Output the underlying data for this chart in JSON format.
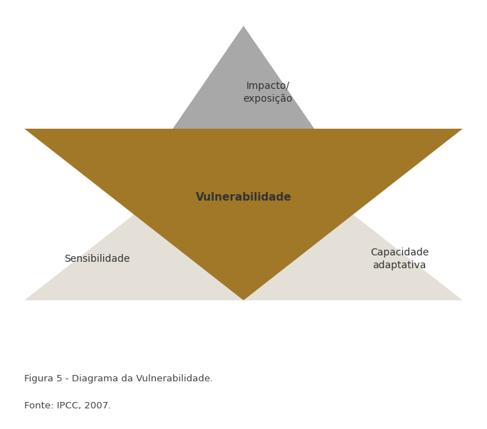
{
  "background_color": "#ffffff",
  "caption_line1": "Figura 5 - Diagrama da Vulnerabilidade.",
  "caption_line2": "Fonte: IPCC, 2007.",
  "caption_fontsize": 9.5,
  "caption_color": "#444444",
  "triangle_up_color": "#a8a8a8",
  "triangle_down_color": "#a07828",
  "triangle_base_color": "#e4e0d8",
  "label_impacto": "Impacto/\nexposição",
  "label_sensibilidade": "Sensibilidade",
  "label_capacidade": "Capacidade\nadaptativa",
  "label_vulnerabilidade": "Vulnerabilidade",
  "label_fontsize": 10,
  "vuln_fontsize": 11,
  "text_color": "#333333"
}
